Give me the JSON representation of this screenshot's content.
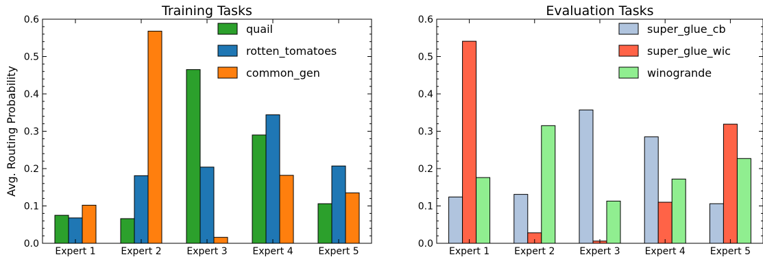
{
  "chart_data": [
    {
      "type": "bar",
      "title": "Training Tasks",
      "xlabel": "",
      "ylabel": "Avg. Routing Probability",
      "categories": [
        "Expert 1",
        "Expert 2",
        "Expert 3",
        "Expert 4",
        "Expert 5"
      ],
      "ylim": [
        0,
        0.6
      ],
      "yticks": [
        "0.0",
        "0.1",
        "0.2",
        "0.3",
        "0.4",
        "0.5",
        "0.6"
      ],
      "series": [
        {
          "name": "quail",
          "color": "#2ca02c",
          "values": [
            0.075,
            0.066,
            0.465,
            0.29,
            0.106
          ]
        },
        {
          "name": "rotten_tomatoes",
          "color": "#1f77b4",
          "values": [
            0.068,
            0.181,
            0.204,
            0.344,
            0.207
          ]
        },
        {
          "name": "common_gen",
          "color": "#ff7f0e",
          "values": [
            0.102,
            0.568,
            0.016,
            0.182,
            0.135
          ]
        }
      ],
      "legend": "top-right",
      "grid": false
    },
    {
      "type": "bar",
      "title": "Evaluation Tasks",
      "xlabel": "",
      "ylabel": "",
      "categories": [
        "Expert 1",
        "Expert 2",
        "Expert 3",
        "Expert 4",
        "Expert 5"
      ],
      "ylim": [
        0,
        0.6
      ],
      "yticks": [
        "0.0",
        "0.1",
        "0.2",
        "0.3",
        "0.4",
        "0.5",
        "0.6"
      ],
      "series": [
        {
          "name": "super_glue_cb",
          "color": "#b0c4de",
          "values": [
            0.124,
            0.131,
            0.357,
            0.285,
            0.106
          ]
        },
        {
          "name": "super_glue_wic",
          "color": "#ff6347",
          "values": [
            0.541,
            0.028,
            0.006,
            0.11,
            0.319
          ]
        },
        {
          "name": "winogrande",
          "color": "#90ee90",
          "values": [
            0.176,
            0.315,
            0.113,
            0.172,
            0.227
          ]
        }
      ],
      "legend": "top-right",
      "grid": false
    }
  ]
}
